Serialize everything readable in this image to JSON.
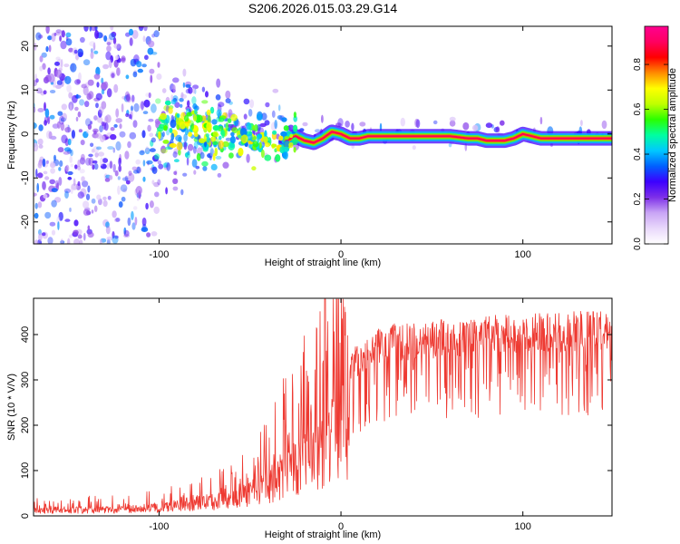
{
  "title": "S206.2026.015.03.29.G14",
  "chart_data": [
    {
      "type": "heatmap",
      "name": "spectrogram",
      "xlabel": "Height of straight line (km)",
      "ylabel": "Frequency (Hz)",
      "xlim": [
        -169,
        149
      ],
      "ylim": [
        -25,
        24.5
      ],
      "xticks": [
        -100,
        0,
        100
      ],
      "yticks": [
        -20,
        -10,
        0,
        10,
        20
      ],
      "xtick_labels": [
        "-100",
        "0",
        "100"
      ],
      "ytick_labels": [
        "-20",
        "-10",
        "0",
        "10",
        "20"
      ],
      "colorbar": {
        "label": "Normalized spectral amplitude",
        "range": [
          0,
          0.97
        ],
        "ticks": [
          0.0,
          0.2,
          0.4,
          0.6,
          0.8
        ],
        "tick_labels": [
          "0.0",
          "0.2",
          "0.4",
          "0.6",
          "0.8"
        ],
        "colors": [
          "#ffffff",
          "#e9d8fb",
          "#c9a5f5",
          "#7d2fe8",
          "#3c00ff",
          "#0060ff",
          "#00c8ff",
          "#00ffa0",
          "#2aff00",
          "#c0ff00",
          "#ffff00",
          "#ff8c00",
          "#ff0000",
          "#ff0060",
          "#ff0090"
        ]
      },
      "signal_track": {
        "heights": [
          -90,
          -80,
          -70,
          -60,
          -50,
          -40,
          -35,
          -30,
          -25,
          -20,
          -15,
          -10,
          -5,
          0,
          5,
          10,
          15,
          20,
          40,
          60,
          70,
          75,
          80,
          85,
          90,
          95,
          100,
          110,
          130,
          149
        ],
        "freqs": [
          2.5,
          2.0,
          -1.0,
          0.0,
          -2.0,
          -1.5,
          -2.0,
          -1.5,
          -0.5,
          -1.5,
          -2.0,
          -1.0,
          0.5,
          0.0,
          -1.0,
          -1.0,
          -0.5,
          -0.5,
          -0.5,
          -0.5,
          -1.0,
          -1.0,
          -1.5,
          -1.5,
          -1.5,
          -1.0,
          0.0,
          -1.0,
          -1.0,
          -1.0
        ]
      }
    },
    {
      "type": "line",
      "name": "snr",
      "xlabel": "Height of straight line (km)",
      "ylabel": "SNR (10 * V/V)",
      "xlim": [
        -169,
        149
      ],
      "ylim": [
        0,
        480
      ],
      "xticks": [
        -100,
        0,
        100
      ],
      "yticks": [
        0,
        100,
        200,
        300,
        400
      ],
      "xtick_labels": [
        "-100",
        "0",
        "100"
      ],
      "ytick_labels": [
        "0",
        "100",
        "200",
        "300",
        "400"
      ],
      "color": "#ee3a32",
      "trend": {
        "x": [
          -169,
          -120,
          -100,
          -80,
          -60,
          -45,
          -35,
          -25,
          -15,
          -5,
          0,
          5,
          12,
          20,
          30,
          50,
          80,
          110,
          149
        ],
        "y": [
          20,
          22,
          30,
          45,
          55,
          90,
          130,
          180,
          210,
          260,
          300,
          330,
          340,
          370,
          380,
          385,
          395,
          400,
          405
        ]
      }
    }
  ]
}
